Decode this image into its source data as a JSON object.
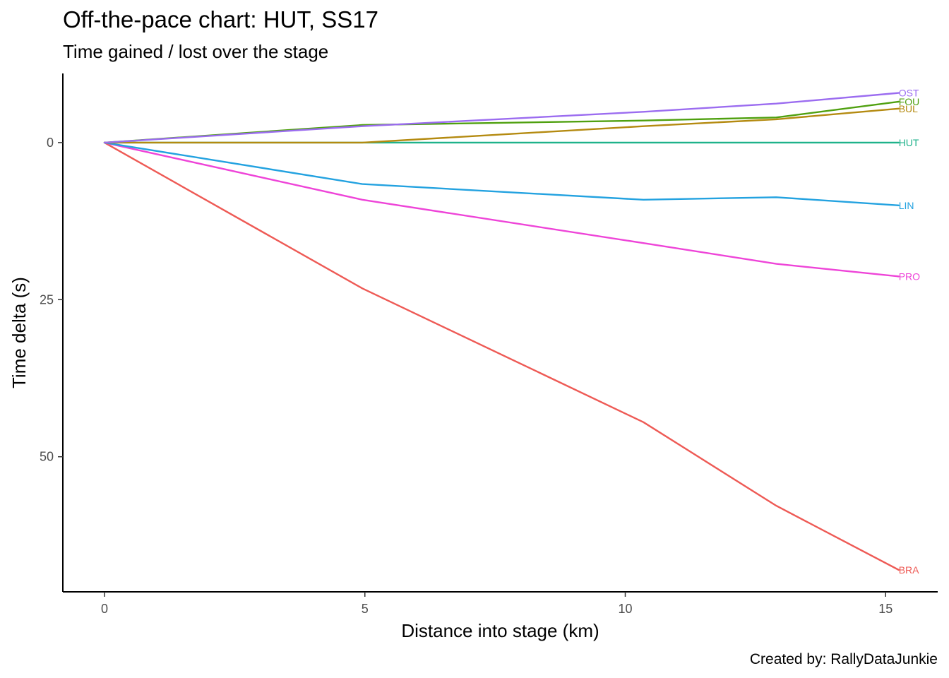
{
  "chart_data": {
    "type": "line",
    "title": "Off-the-pace chart: HUT, SS17",
    "subtitle": "Time gained / lost over the stage",
    "caption": "Created by: RallyDataJunkie",
    "xlabel": "Distance into stage (km)",
    "ylabel": "Time delta (s)",
    "xlim": [
      -0.8,
      16.0
    ],
    "ylim": [
      71.5,
      -11
    ],
    "y_reversed": true,
    "x_ticks": [
      0,
      5,
      10,
      15
    ],
    "y_ticks": [
      0,
      25,
      50
    ],
    "grid": false,
    "legend": "direct labels at line ends",
    "series": [
      {
        "name": "OST",
        "color": "#9B6CF0",
        "x": [
          0,
          4.95,
          10.35,
          12.9,
          15.25
        ],
        "y": [
          0,
          -2.6,
          -4.9,
          -6.2,
          -7.9
        ]
      },
      {
        "name": "FOU",
        "color": "#4FA00F",
        "x": [
          0,
          4.95,
          10.35,
          12.9,
          15.25
        ],
        "y": [
          0,
          -2.8,
          -3.5,
          -4.0,
          -6.5
        ]
      },
      {
        "name": "BUL",
        "color": "#B48A10",
        "x": [
          0,
          4.95,
          10.35,
          12.9,
          15.25
        ],
        "y": [
          0,
          0,
          -2.6,
          -3.7,
          -5.4
        ]
      },
      {
        "name": "HUT",
        "color": "#1FB28B",
        "x": [
          0,
          4.95,
          10.35,
          12.9,
          15.25
        ],
        "y": [
          0,
          0,
          0,
          0,
          0
        ]
      },
      {
        "name": "LIN",
        "color": "#23A2E0",
        "x": [
          0,
          4.95,
          10.35,
          12.9,
          15.25
        ],
        "y": [
          0,
          6.6,
          9.1,
          8.7,
          10.0
        ]
      },
      {
        "name": "PRO",
        "color": "#EE44D8",
        "x": [
          0,
          4.95,
          10.35,
          12.9,
          15.25
        ],
        "y": [
          0,
          9.1,
          16.0,
          19.3,
          21.3
        ]
      },
      {
        "name": "BRA",
        "color": "#EE5A55",
        "x": [
          0,
          4.95,
          10.35,
          12.9,
          15.25
        ],
        "y": [
          0,
          23.2,
          44.5,
          57.8,
          68.0
        ]
      }
    ]
  }
}
